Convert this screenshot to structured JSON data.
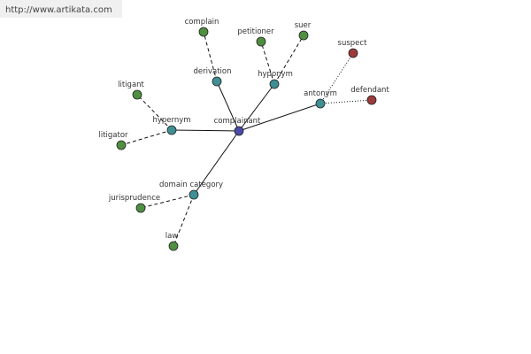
{
  "header": {
    "url": "http://www.artikata.com"
  },
  "nodes": [
    {
      "label": "complainant"
    },
    {
      "label": "hypernym"
    },
    {
      "label": "derivation"
    },
    {
      "label": "hyponym"
    },
    {
      "label": "antonym"
    },
    {
      "label": "domain category"
    },
    {
      "label": "complain"
    },
    {
      "label": "petitioner"
    },
    {
      "label": "suer"
    },
    {
      "label": "suspect"
    },
    {
      "label": "defendant"
    },
    {
      "label": "litigant"
    },
    {
      "label": "litigator"
    },
    {
      "label": "jurisprudence"
    },
    {
      "label": "law"
    }
  ]
}
